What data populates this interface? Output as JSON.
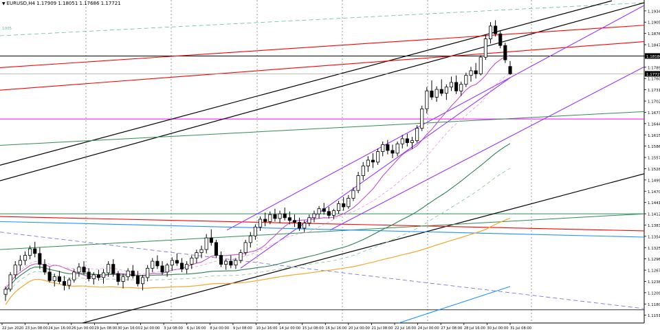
{
  "header": {
    "symbol": "EURUSD,H4",
    "ohlc": "1.17909 1.18051 1.17686 1.17721",
    "arrow": "▼"
  },
  "colors": {
    "bull": "#000000",
    "bear": "#000000",
    "grid": "#555555",
    "black_line": "#000000",
    "red_line": "#ff0000",
    "purple_line": "#9933ff",
    "magenta_line": "#ff00ff",
    "green_line": "#2e8b57",
    "blue_line": "#1e90ff",
    "orange_ma": "#f0a830",
    "violet_ma": "#c050c0",
    "darkgreen_ma": "#2e7d4f",
    "current_price_bg": "#000000"
  },
  "chart_data": {
    "type": "candlestick",
    "title": "EURUSD,H4",
    "ylim": [
      1.1131,
      1.1962
    ],
    "y_ticks": [
      "1.19340",
      "1.19050",
      "1.18760",
      "1.18470",
      "1.18180",
      "1.17890",
      "1.17600",
      "1.17310",
      "1.17020",
      "1.16730",
      "1.16440",
      "1.16150",
      "1.15860",
      "1.15570",
      "1.15280",
      "1.14990",
      "1.14700",
      "1.14410",
      "1.14120",
      "1.13830",
      "1.13540",
      "1.13250",
      "1.12960",
      "1.12670",
      "1.12380",
      "1.12090",
      "1.11800",
      "1.11510"
    ],
    "x_ticks": [
      "22 Jun 2020",
      "23 Jun 08:00",
      "24 Jun 16:00",
      "26 Jun 00:00",
      "29 Jun 08:00",
      "30 Jun 16:00",
      "2 Jul 00:00",
      "3 Jul 08:00",
      "6 Jul 16:00",
      "8 Jul 00:00",
      "9 Jul 08:00",
      "10 Jul 16:00",
      "14 Jul 00:00",
      "15 Jul 08:00",
      "16 Jul 16:00",
      "20 Jul 00:00",
      "21 Jul 08:00",
      "22 Jul 16:00",
      "24 Jul 00:00",
      "27 Jul 08:00",
      "28 Jul 16:00",
      "30 Jul 00:00",
      "31 Jul 08:00"
    ],
    "price_labels": [
      "1.18180",
      "1.17721"
    ],
    "level_label": "1005",
    "candles": [
      [
        1.1205,
        1.1225,
        1.1188,
        1.1218
      ],
      [
        1.1218,
        1.1262,
        1.1212,
        1.1255
      ],
      [
        1.1255,
        1.129,
        1.1245,
        1.128
      ],
      [
        1.128,
        1.1305,
        1.1265,
        1.1292
      ],
      [
        1.1292,
        1.1315,
        1.128,
        1.1305
      ],
      [
        1.1305,
        1.133,
        1.1295,
        1.1322
      ],
      [
        1.1322,
        1.134,
        1.13,
        1.131
      ],
      [
        1.131,
        1.1325,
        1.127,
        1.1282
      ],
      [
        1.1282,
        1.1295,
        1.1255,
        1.1262
      ],
      [
        1.1262,
        1.1275,
        1.1235,
        1.124
      ],
      [
        1.124,
        1.1258,
        1.1225,
        1.125
      ],
      [
        1.125,
        1.1265,
        1.1232,
        1.1238
      ],
      [
        1.1238,
        1.1252,
        1.1215,
        1.1228
      ],
      [
        1.1228,
        1.1248,
        1.1218,
        1.1242
      ],
      [
        1.1242,
        1.127,
        1.1235,
        1.1262
      ],
      [
        1.1262,
        1.1285,
        1.125,
        1.1275
      ],
      [
        1.1275,
        1.129,
        1.1255,
        1.1262
      ],
      [
        1.1262,
        1.1272,
        1.1238,
        1.1245
      ],
      [
        1.1245,
        1.1262,
        1.123,
        1.1255
      ],
      [
        1.1255,
        1.1268,
        1.124,
        1.1248
      ],
      [
        1.1248,
        1.127,
        1.1232,
        1.126
      ],
      [
        1.126,
        1.129,
        1.125,
        1.1282
      ],
      [
        1.1282,
        1.1295,
        1.125,
        1.1258
      ],
      [
        1.1258,
        1.1265,
        1.1228,
        1.1238
      ],
      [
        1.1238,
        1.1258,
        1.122,
        1.125
      ],
      [
        1.125,
        1.1272,
        1.124,
        1.1265
      ],
      [
        1.1265,
        1.128,
        1.1245,
        1.1252
      ],
      [
        1.1252,
        1.1265,
        1.1225,
        1.1232
      ],
      [
        1.1232,
        1.1255,
        1.1215,
        1.1248
      ],
      [
        1.1248,
        1.128,
        1.1238,
        1.1272
      ],
      [
        1.1272,
        1.1298,
        1.1262,
        1.129
      ],
      [
        1.129,
        1.1305,
        1.127,
        1.1278
      ],
      [
        1.1278,
        1.129,
        1.1255,
        1.1262
      ],
      [
        1.1262,
        1.1285,
        1.125,
        1.128
      ],
      [
        1.128,
        1.13,
        1.1265,
        1.1292
      ],
      [
        1.1292,
        1.131,
        1.1278,
        1.1285
      ],
      [
        1.1285,
        1.1298,
        1.1262,
        1.127
      ],
      [
        1.127,
        1.129,
        1.1258,
        1.1282
      ],
      [
        1.1282,
        1.1305,
        1.127,
        1.1298
      ],
      [
        1.1298,
        1.132,
        1.1285,
        1.1312
      ],
      [
        1.1312,
        1.133,
        1.1298,
        1.132
      ],
      [
        1.132,
        1.136,
        1.131,
        1.135
      ],
      [
        1.135,
        1.1372,
        1.133,
        1.1338
      ],
      [
        1.1338,
        1.1345,
        1.1298,
        1.1305
      ],
      [
        1.1305,
        1.1315,
        1.1275,
        1.1282
      ],
      [
        1.1282,
        1.1295,
        1.1268,
        1.129
      ],
      [
        1.129,
        1.1305,
        1.1272,
        1.128
      ],
      [
        1.128,
        1.1298,
        1.127,
        1.1292
      ],
      [
        1.1292,
        1.132,
        1.1285,
        1.1312
      ],
      [
        1.1312,
        1.1345,
        1.1305,
        1.1338
      ],
      [
        1.1338,
        1.1365,
        1.1325,
        1.1355
      ],
      [
        1.1355,
        1.1385,
        1.1345,
        1.1378
      ],
      [
        1.1378,
        1.1405,
        1.1368,
        1.1398
      ],
      [
        1.1398,
        1.1415,
        1.138,
        1.1392
      ],
      [
        1.1392,
        1.1418,
        1.1385,
        1.141
      ],
      [
        1.141,
        1.1425,
        1.1392,
        1.14
      ],
      [
        1.14,
        1.142,
        1.1388,
        1.1412
      ],
      [
        1.1412,
        1.1428,
        1.1395,
        1.1402
      ],
      [
        1.1402,
        1.1418,
        1.1385,
        1.1395
      ],
      [
        1.1395,
        1.141,
        1.1378,
        1.139
      ],
      [
        1.139,
        1.1402,
        1.1368,
        1.1375
      ],
      [
        1.1375,
        1.1395,
        1.1365,
        1.1388
      ],
      [
        1.1388,
        1.141,
        1.138,
        1.1402
      ],
      [
        1.1402,
        1.142,
        1.139,
        1.1412
      ],
      [
        1.1412,
        1.1432,
        1.14,
        1.1425
      ],
      [
        1.1425,
        1.144,
        1.141,
        1.1418
      ],
      [
        1.1418,
        1.143,
        1.14,
        1.1408
      ],
      [
        1.1408,
        1.1425,
        1.1398,
        1.142
      ],
      [
        1.142,
        1.1445,
        1.1412,
        1.1438
      ],
      [
        1.1438,
        1.1455,
        1.142,
        1.143
      ],
      [
        1.143,
        1.146,
        1.1425,
        1.1452
      ],
      [
        1.1452,
        1.148,
        1.1445,
        1.1472
      ],
      [
        1.1472,
        1.152,
        1.1465,
        1.151
      ],
      [
        1.151,
        1.1545,
        1.1498,
        1.1535
      ],
      [
        1.1535,
        1.156,
        1.152,
        1.155
      ],
      [
        1.155,
        1.1568,
        1.153,
        1.1545
      ],
      [
        1.1545,
        1.158,
        1.1538,
        1.1572
      ],
      [
        1.1572,
        1.1598,
        1.156,
        1.159
      ],
      [
        1.159,
        1.1602,
        1.1565,
        1.1575
      ],
      [
        1.1575,
        1.159,
        1.1555,
        1.1568
      ],
      [
        1.1568,
        1.1598,
        1.156,
        1.1592
      ],
      [
        1.1592,
        1.1615,
        1.158,
        1.1605
      ],
      [
        1.1605,
        1.1618,
        1.1585,
        1.1595
      ],
      [
        1.1595,
        1.161,
        1.1578,
        1.16
      ],
      [
        1.16,
        1.164,
        1.1595,
        1.1632
      ],
      [
        1.1632,
        1.169,
        1.1625,
        1.1682
      ],
      [
        1.1682,
        1.1738,
        1.167,
        1.1728
      ],
      [
        1.1728,
        1.1755,
        1.1705,
        1.1712
      ],
      [
        1.1712,
        1.174,
        1.17,
        1.1732
      ],
      [
        1.1732,
        1.1758,
        1.1715,
        1.1722
      ],
      [
        1.1722,
        1.1745,
        1.1705,
        1.1738
      ],
      [
        1.1738,
        1.1765,
        1.1728,
        1.175
      ],
      [
        1.175,
        1.1768,
        1.172,
        1.1728
      ],
      [
        1.1728,
        1.1752,
        1.1715,
        1.1745
      ],
      [
        1.1745,
        1.1775,
        1.1738,
        1.1768
      ],
      [
        1.1768,
        1.179,
        1.1752,
        1.178
      ],
      [
        1.178,
        1.18,
        1.176,
        1.1772
      ],
      [
        1.1772,
        1.182,
        1.1768,
        1.1815
      ],
      [
        1.1815,
        1.1872,
        1.1808,
        1.1862
      ],
      [
        1.1862,
        1.1905,
        1.185,
        1.1895
      ],
      [
        1.1895,
        1.191,
        1.1868,
        1.1875
      ],
      [
        1.1875,
        1.1882,
        1.1838,
        1.1845
      ],
      [
        1.1845,
        1.1852,
        1.18,
        1.1808
      ],
      [
        1.1791,
        1.1805,
        1.1769,
        1.1772
      ]
    ]
  }
}
